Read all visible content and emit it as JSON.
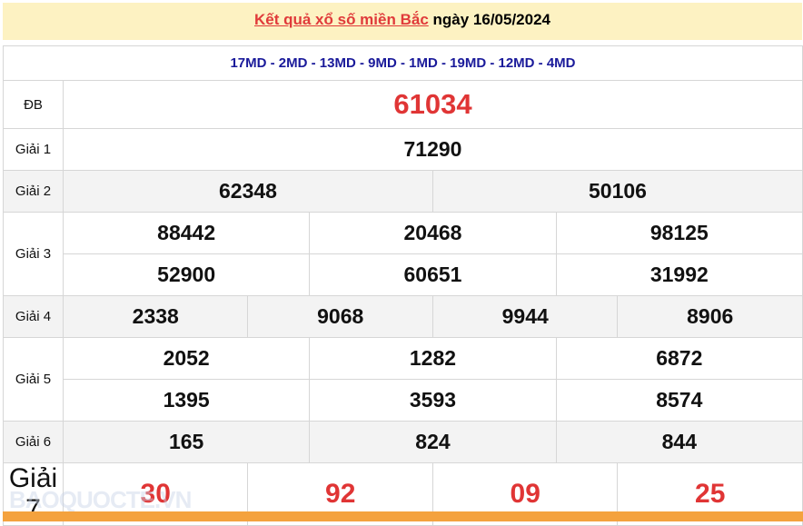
{
  "header": {
    "link_text": "Kết quả xổ số miền Bắc",
    "date_text": "ngày 16/05/2024"
  },
  "codes": "17MD - 2MD - 13MD - 9MD - 1MD - 19MD - 12MD - 4MD",
  "prizes": {
    "db": {
      "label": "ĐB",
      "values": [
        "61034"
      ]
    },
    "g1": {
      "label": "Giải 1",
      "values": [
        "71290"
      ]
    },
    "g2": {
      "label": "Giải 2",
      "values": [
        "62348",
        "50106"
      ]
    },
    "g3": {
      "label": "Giải 3",
      "values": [
        "88442",
        "20468",
        "98125",
        "52900",
        "60651",
        "31992"
      ]
    },
    "g4": {
      "label": "Giải 4",
      "values": [
        "2338",
        "9068",
        "9944",
        "8906"
      ]
    },
    "g5": {
      "label": "Giải 5",
      "values": [
        "2052",
        "1282",
        "6872",
        "1395",
        "3593",
        "8574"
      ]
    },
    "g6": {
      "label": "Giải 6",
      "values": [
        "165",
        "824",
        "844"
      ]
    },
    "g7": {
      "label": "Giải 7",
      "values": [
        "30",
        "92",
        "09",
        "25"
      ]
    }
  },
  "watermark": "BAOQUOCTE.VN",
  "colors": {
    "accent_red": "#e03535",
    "code_blue": "#1a1a9a",
    "header_bg": "#fdf2c2",
    "footer_orange": "#f4a23e"
  }
}
